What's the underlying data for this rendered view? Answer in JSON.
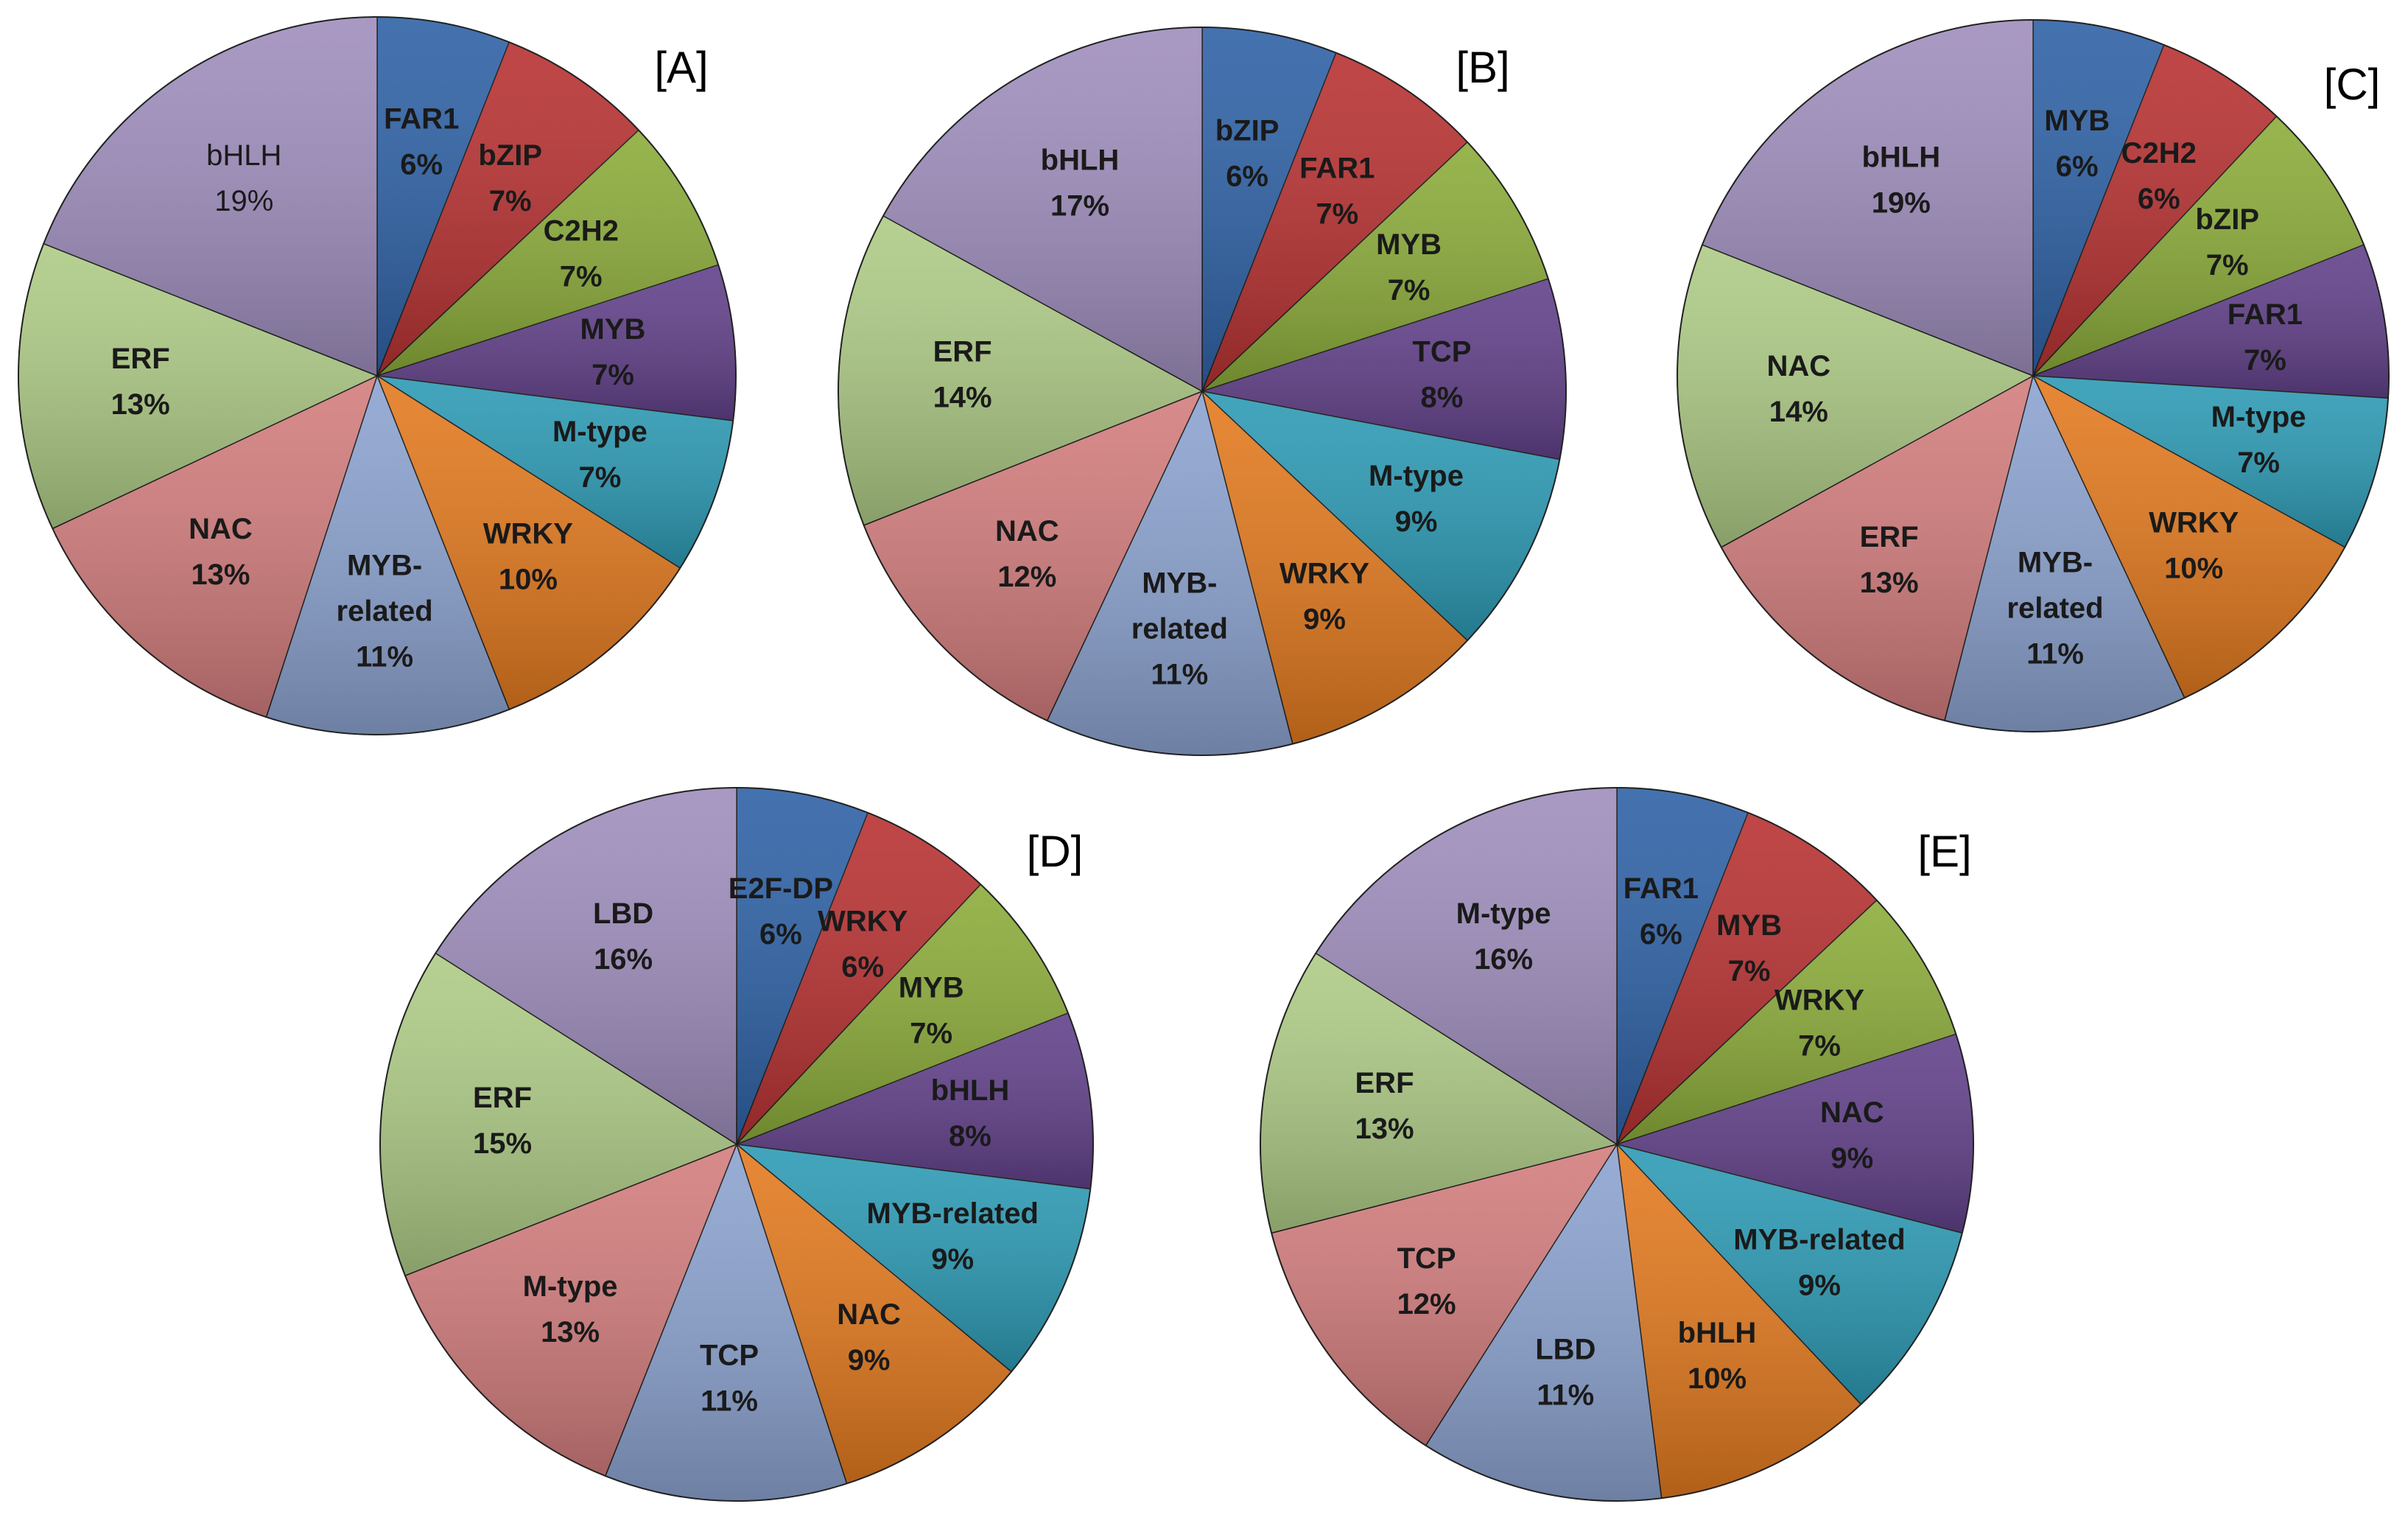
{
  "chart_data": [
    {
      "type": "pie",
      "title": "[A]",
      "categories": [
        "FAR1",
        "bZIP",
        "C2H2",
        "MYB",
        "M-type",
        "WRKY",
        "MYB-related",
        "NAC",
        "ERF",
        "bHLH"
      ],
      "values": [
        6,
        7,
        7,
        7,
        7,
        10,
        11,
        13,
        13,
        19
      ],
      "value_labels": [
        "6%",
        "7%",
        "7%",
        "7%",
        "7%",
        "10%",
        "11%",
        "13%",
        "13%",
        "19%"
      ],
      "label_lines": [
        [
          "FAR1"
        ],
        [
          "bZIP"
        ],
        [
          "C2H2"
        ],
        [
          "MYB"
        ],
        [
          "M-type"
        ],
        [
          "WRKY"
        ],
        [
          "MYB-",
          "related"
        ],
        [
          "NAC"
        ],
        [
          "ERF"
        ],
        [
          "bHLH"
        ]
      ]
    },
    {
      "type": "pie",
      "title": "[B]",
      "categories": [
        "bZIP",
        "FAR1",
        "MYB",
        "TCP",
        "M-type",
        "WRKY",
        "MYB-related",
        "NAC",
        "ERF",
        "bHLH"
      ],
      "values": [
        6,
        7,
        7,
        8,
        9,
        9,
        11,
        12,
        14,
        17
      ],
      "value_labels": [
        "6%",
        "7%",
        "7%",
        "8%",
        "9%",
        "9%",
        "11%",
        "12%",
        "14%",
        "17%"
      ],
      "label_lines": [
        [
          "bZIP"
        ],
        [
          "FAR1"
        ],
        [
          "MYB"
        ],
        [
          "TCP"
        ],
        [
          "M-type"
        ],
        [
          "WRKY"
        ],
        [
          "MYB-",
          "related"
        ],
        [
          "NAC"
        ],
        [
          "ERF"
        ],
        [
          "bHLH"
        ]
      ]
    },
    {
      "type": "pie",
      "title": "[C]",
      "categories": [
        "MYB",
        "C2H2",
        "bZIP",
        "FAR1",
        "M-type",
        "WRKY",
        "MYB-related",
        "ERF",
        "NAC",
        "bHLH"
      ],
      "values": [
        6,
        6,
        7,
        7,
        7,
        10,
        11,
        13,
        14,
        19
      ],
      "value_labels": [
        "6%",
        "6%",
        "7%",
        "7%",
        "7%",
        "10%",
        "11%",
        "13%",
        "14%",
        "19%"
      ],
      "label_lines": [
        [
          "MYB"
        ],
        [
          "C2H2"
        ],
        [
          "bZIP"
        ],
        [
          "FAR1"
        ],
        [
          "M-type"
        ],
        [
          "WRKY"
        ],
        [
          "MYB-",
          "related"
        ],
        [
          "ERF"
        ],
        [
          "NAC"
        ],
        [
          "bHLH"
        ]
      ]
    },
    {
      "type": "pie",
      "title": "[D]",
      "categories": [
        "E2F-DP",
        "WRKY",
        "MYB",
        "bHLH",
        "MYB-related",
        "NAC",
        "TCP",
        "M-type",
        "ERF",
        "LBD"
      ],
      "values": [
        6,
        6,
        7,
        8,
        9,
        9,
        11,
        13,
        15,
        16
      ],
      "value_labels": [
        "6%",
        "6%",
        "7%",
        "8%",
        "9%",
        "9%",
        "11%",
        "13%",
        "15%",
        "16%"
      ],
      "label_lines": [
        [
          "E2F-DP"
        ],
        [
          "WRKY"
        ],
        [
          "MYB"
        ],
        [
          "bHLH"
        ],
        [
          "MYB-related"
        ],
        [
          "NAC"
        ],
        [
          "TCP"
        ],
        [
          "M-type"
        ],
        [
          "ERF"
        ],
        [
          "LBD"
        ]
      ]
    },
    {
      "type": "pie",
      "title": "[E]",
      "categories": [
        "FAR1",
        "MYB",
        "WRKY",
        "NAC",
        "MYB-related",
        "bHLH",
        "LBD",
        "TCP",
        "ERF",
        "M-type"
      ],
      "values": [
        6,
        7,
        7,
        9,
        9,
        10,
        11,
        12,
        13,
        16
      ],
      "value_labels": [
        "6%",
        "7%",
        "7%",
        "9%",
        "9%",
        "10%",
        "11%",
        "12%",
        "13%",
        "16%"
      ],
      "label_lines": [
        [
          "FAR1"
        ],
        [
          "MYB"
        ],
        [
          "WRKY"
        ],
        [
          "NAC"
        ],
        [
          "MYB-related"
        ],
        [
          "bHLH"
        ],
        [
          "LBD"
        ],
        [
          "TCP"
        ],
        [
          "ERF"
        ],
        [
          "M-type"
        ]
      ]
    }
  ],
  "colors": {
    "slices": [
      "#2f62a6",
      "#b83232",
      "#8cac3a",
      "#62418a",
      "#2d9bb5",
      "#e37a1f",
      "#8ca3d0",
      "#d37d7d",
      "#aecb86",
      "#9f8ebd"
    ]
  }
}
